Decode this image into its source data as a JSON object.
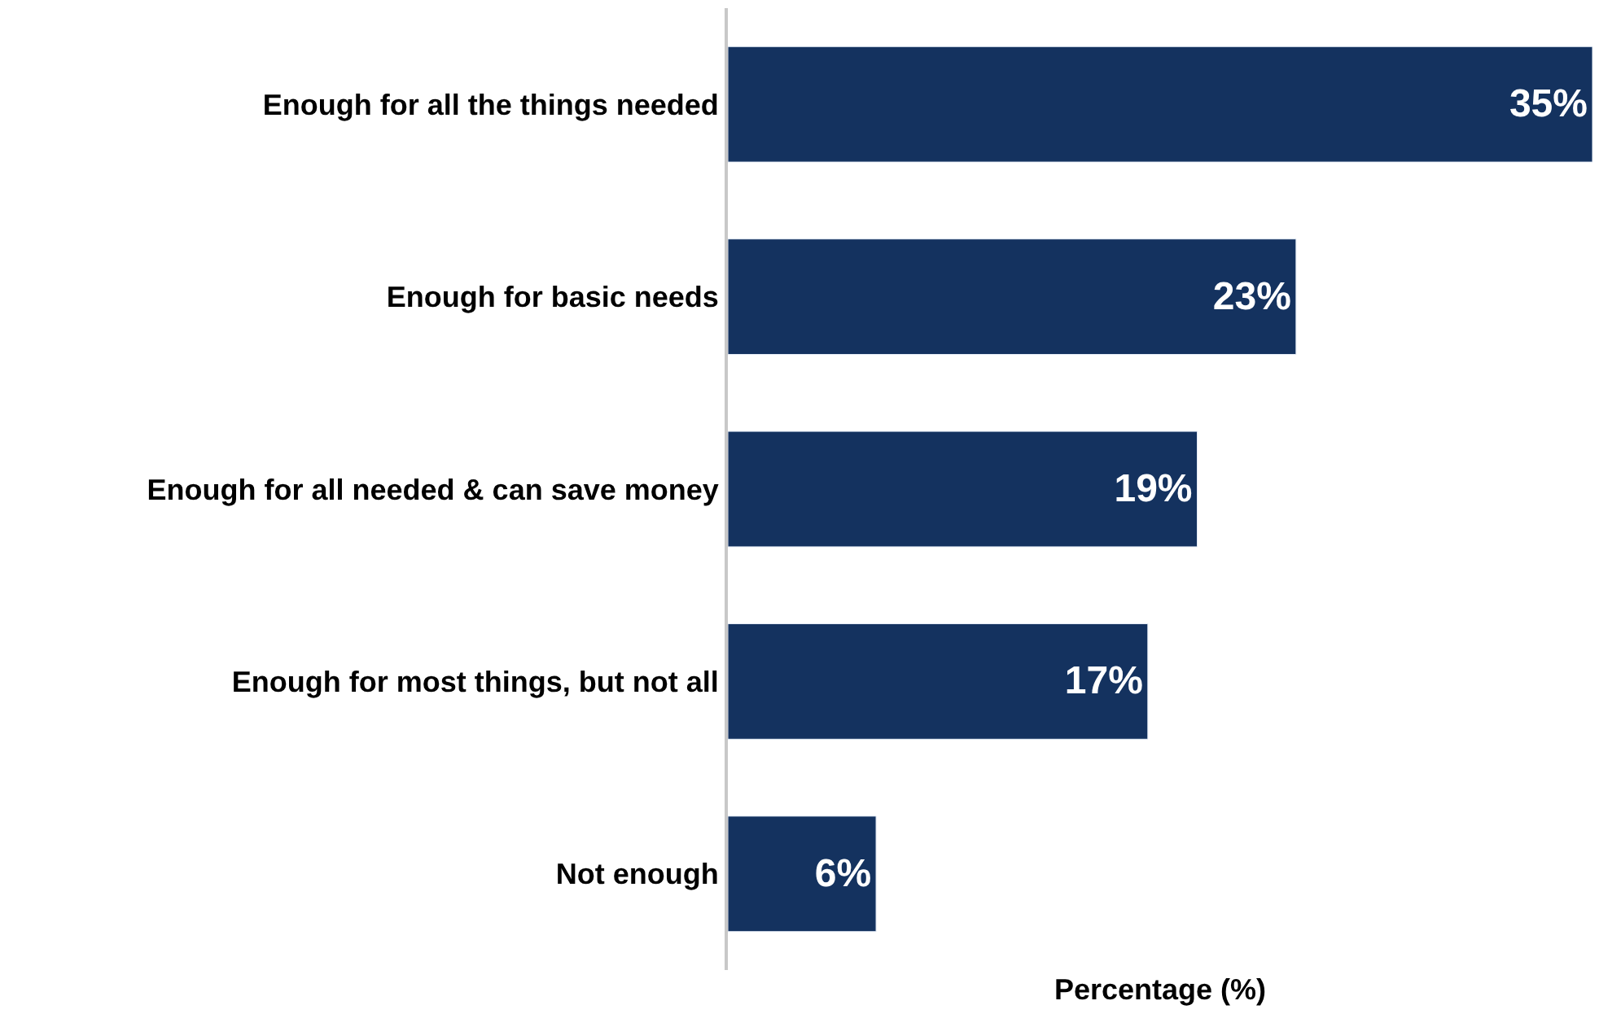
{
  "chart_data": {
    "type": "bar",
    "orientation": "horizontal",
    "xlabel": "Percentage (%)",
    "categories": [
      "Enough for all the things needed",
      "Enough for basic needs",
      "Enough for all needed & can save money",
      "Enough for most things, but not all",
      "Not enough"
    ],
    "values": [
      35,
      23,
      19,
      17,
      6
    ],
    "color": "#14325f",
    "xlim": [
      0,
      35
    ],
    "data_labels": true,
    "value_labels": [
      "35%",
      "23%",
      "19%",
      "17%",
      "6%"
    ],
    "tick_labels": "y"
  }
}
